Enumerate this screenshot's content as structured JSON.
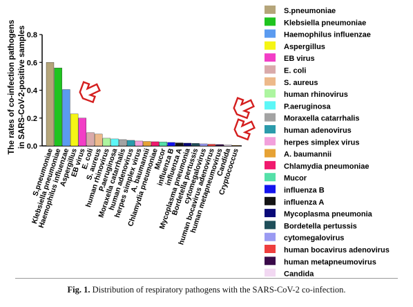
{
  "chart_data": {
    "type": "bar",
    "ylabel": "The rates of co-infection pathogens in SARS-CoV-2-positive samples",
    "ylim": [
      0,
      0.8
    ],
    "yticks": [
      "0.0",
      "0.2",
      "0.4",
      "0.6",
      "0.8"
    ],
    "legend_position": "right",
    "categories": [
      "S.pneumoniae",
      "Klebsiella pneumoniae",
      "Haemophilus influenzae",
      "Aspergillus",
      "EB virus",
      "E. coli",
      "S. aureus",
      "human rhinovirus",
      "P.aeruginosa",
      "Moraxella catarrhalis",
      "human adenovirus",
      "herpes simplex virus",
      "A. baumannii",
      "Chlamydia pneumoniae",
      "Mucor",
      "influenza B",
      "influenza A",
      "Mycoplasma pneumonia",
      "Bordetella pertussis",
      "cytomegalovirus",
      "human bocavirus adenovirus",
      "human metapneumovirus",
      "Candida",
      "Cryptococcus"
    ],
    "values": [
      0.6,
      0.56,
      0.405,
      0.23,
      0.2,
      0.095,
      0.085,
      0.055,
      0.05,
      0.045,
      0.04,
      0.035,
      0.032,
      0.03,
      0.028,
      0.025,
      0.022,
      0.02,
      0.018,
      0.015,
      0.012,
      0.01,
      0.006,
      0.004
    ],
    "colors": [
      "#b5a57a",
      "#1fc41f",
      "#5b9bf0",
      "#f5f515",
      "#f23ec6",
      "#d9aaaa",
      "#edb98a",
      "#adf5a0",
      "#5cf7f7",
      "#a3a3a3",
      "#2b9bab",
      "#f2a0dc",
      "#e6a235",
      "#f01a6e",
      "#55e0a8",
      "#1414ee",
      "#141414",
      "#0a0a78",
      "#1f4f5a",
      "#9a9af2",
      "#ee3e3e",
      "#3a0a4a",
      "#f2d8f2",
      "#9a6a1e"
    ],
    "highlighted_categories": [
      "Aspergillus",
      "Candida",
      "Cryptococcus"
    ],
    "marker_icon": "red-outline-arrow-icon"
  },
  "caption": {
    "label": "Fig. 1.",
    "text": "Distribution of respiratory pathogens with the SARS-CoV-2 co-infection."
  }
}
